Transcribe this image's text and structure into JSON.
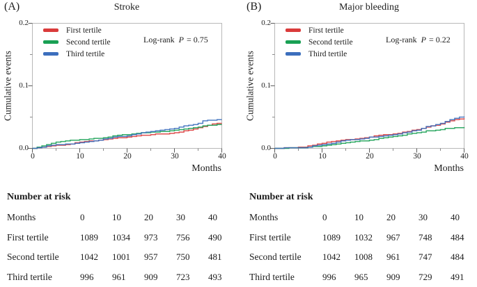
{
  "figure": {
    "panels": [
      {
        "label": "(A)",
        "title": "Stroke",
        "ylabel": "Cumulative events",
        "xlabel": "Months",
        "logrank": {
          "prefix": "Log-rank",
          "p": "P",
          "value": "= 0.75"
        },
        "legend": [
          "First tertile",
          "Second tertile",
          "Third tertile"
        ],
        "yticks": [
          "0.2",
          "0.1",
          "0.0"
        ],
        "xticks": [
          "0",
          "10",
          "20",
          "30",
          "40"
        ],
        "risk_table": {
          "title": "Number at risk",
          "row_header": "Months",
          "columns": [
            "0",
            "10",
            "20",
            "30",
            "40"
          ],
          "rows": [
            {
              "label": "First tertile",
              "values": [
                "1089",
                "1034",
                "973",
                "756",
                "490"
              ]
            },
            {
              "label": "Second tertile",
              "values": [
                "1042",
                "1001",
                "957",
                "750",
                "481"
              ]
            },
            {
              "label": "Third tertile",
              "values": [
                "996",
                "961",
                "909",
                "723",
                "493"
              ]
            }
          ]
        }
      },
      {
        "label": "(B)",
        "title": "Major bleeding",
        "ylabel": "Cumulative events",
        "xlabel": "Months",
        "logrank": {
          "prefix": "Log-rank",
          "p": "P",
          "value": "= 0.22"
        },
        "legend": [
          "First tertile",
          "Second tertile",
          "Third tertile"
        ],
        "yticks": [
          "0.2",
          "0.1",
          "0.0"
        ],
        "xticks": [
          "0",
          "10",
          "20",
          "30",
          "40"
        ],
        "risk_table": {
          "title": "Number at risk",
          "row_header": "Months",
          "columns": [
            "0",
            "10",
            "20",
            "30",
            "40"
          ],
          "rows": [
            {
              "label": "First tertile",
              "values": [
                "1089",
                "1032",
                "967",
                "748",
                "484"
              ]
            },
            {
              "label": "Second tertile",
              "values": [
                "1042",
                "1008",
                "961",
                "747",
                "484"
              ]
            },
            {
              "label": "Third tertile",
              "values": [
                "996",
                "965",
                "909",
                "729",
                "491"
              ]
            }
          ]
        }
      }
    ]
  },
  "chart_data": [
    {
      "type": "line",
      "step": true,
      "title": "Stroke",
      "xlabel": "Months",
      "ylabel": "Cumulative events",
      "annotation": "Log-rank P = 0.75",
      "legend_position": "upper-left",
      "xlim": [
        0,
        40
      ],
      "ylim": [
        0,
        0.2
      ],
      "xticks": [
        0,
        10,
        20,
        30,
        40
      ],
      "xminor": [
        5,
        15,
        25,
        35
      ],
      "yticks": [
        0,
        0.1,
        0.2
      ],
      "yminor": [
        0.05,
        0.15
      ],
      "x": [
        0,
        1,
        2,
        3,
        4,
        5,
        6,
        7,
        8,
        9,
        10,
        11,
        12,
        13,
        14,
        15,
        16,
        17,
        18,
        19,
        20,
        21,
        22,
        23,
        24,
        25,
        26,
        27,
        28,
        29,
        30,
        31,
        32,
        33,
        34,
        35,
        36,
        37,
        38,
        39,
        40
      ],
      "series": [
        {
          "name": "First tertile",
          "color": "#da3b3b",
          "values": [
            0,
            0.001,
            0.002,
            0.003,
            0.004,
            0.005,
            0.005,
            0.006,
            0.007,
            0.009,
            0.01,
            0.011,
            0.012,
            0.012,
            0.013,
            0.014,
            0.015,
            0.016,
            0.017,
            0.017,
            0.018,
            0.019,
            0.02,
            0.021,
            0.021,
            0.022,
            0.023,
            0.023,
            0.023,
            0.024,
            0.025,
            0.026,
            0.028,
            0.029,
            0.031,
            0.033,
            0.035,
            0.037,
            0.039,
            0.04,
            0.04
          ]
        },
        {
          "name": "Second tertile",
          "color": "#19a054",
          "values": [
            0,
            0.002,
            0.004,
            0.006,
            0.008,
            0.01,
            0.011,
            0.012,
            0.013,
            0.013,
            0.014,
            0.014,
            0.015,
            0.016,
            0.016,
            0.017,
            0.018,
            0.02,
            0.021,
            0.022,
            0.022,
            0.023,
            0.024,
            0.025,
            0.025,
            0.026,
            0.026,
            0.027,
            0.027,
            0.028,
            0.029,
            0.03,
            0.031,
            0.032,
            0.033,
            0.034,
            0.036,
            0.037,
            0.037,
            0.038,
            0.038
          ]
        },
        {
          "name": "Third tertile",
          "color": "#3c6fbd",
          "values": [
            0,
            0.001,
            0.002,
            0.004,
            0.005,
            0.006,
            0.006,
            0.007,
            0.007,
            0.008,
            0.009,
            0.01,
            0.011,
            0.012,
            0.013,
            0.015,
            0.016,
            0.018,
            0.019,
            0.019,
            0.02,
            0.022,
            0.023,
            0.025,
            0.026,
            0.027,
            0.028,
            0.029,
            0.03,
            0.031,
            0.032,
            0.034,
            0.036,
            0.037,
            0.038,
            0.04,
            0.044,
            0.045,
            0.045,
            0.046,
            0.046
          ]
        }
      ]
    },
    {
      "type": "line",
      "step": true,
      "title": "Major bleeding",
      "xlabel": "Months",
      "ylabel": "Cumulative events",
      "annotation": "Log-rank P = 0.22",
      "legend_position": "upper-left",
      "xlim": [
        0,
        40
      ],
      "ylim": [
        0,
        0.2
      ],
      "xticks": [
        0,
        10,
        20,
        30,
        40
      ],
      "xminor": [
        5,
        15,
        25,
        35
      ],
      "yticks": [
        0,
        0.1,
        0.2
      ],
      "yminor": [
        0.05,
        0.15
      ],
      "x": [
        0,
        1,
        2,
        3,
        4,
        5,
        6,
        7,
        8,
        9,
        10,
        11,
        12,
        13,
        14,
        15,
        16,
        17,
        18,
        19,
        20,
        21,
        22,
        23,
        24,
        25,
        26,
        27,
        28,
        29,
        30,
        31,
        32,
        33,
        34,
        35,
        36,
        37,
        38,
        39,
        40
      ],
      "series": [
        {
          "name": "First tertile",
          "color": "#da3b3b",
          "values": [
            0,
            0,
            0.001,
            0.001,
            0.001,
            0.002,
            0.002,
            0.004,
            0.005,
            0.007,
            0.008,
            0.01,
            0.011,
            0.012,
            0.013,
            0.014,
            0.014,
            0.015,
            0.016,
            0.017,
            0.018,
            0.02,
            0.021,
            0.022,
            0.022,
            0.023,
            0.024,
            0.026,
            0.027,
            0.029,
            0.03,
            0.032,
            0.034,
            0.036,
            0.037,
            0.039,
            0.042,
            0.044,
            0.046,
            0.047,
            0.048
          ]
        },
        {
          "name": "Second tertile",
          "color": "#19a054",
          "values": [
            0,
            0,
            0,
            0.001,
            0.001,
            0.001,
            0.001,
            0.002,
            0.003,
            0.003,
            0.004,
            0.005,
            0.006,
            0.007,
            0.008,
            0.009,
            0.01,
            0.011,
            0.012,
            0.012,
            0.013,
            0.014,
            0.016,
            0.017,
            0.018,
            0.019,
            0.02,
            0.021,
            0.023,
            0.024,
            0.025,
            0.026,
            0.028,
            0.028,
            0.029,
            0.03,
            0.032,
            0.032,
            0.033,
            0.033,
            0.034
          ]
        },
        {
          "name": "Third tertile",
          "color": "#3c6fbd",
          "values": [
            0,
            0,
            0.001,
            0.001,
            0.001,
            0.001,
            0.001,
            0.002,
            0.004,
            0.005,
            0.006,
            0.007,
            0.008,
            0.01,
            0.012,
            0.013,
            0.014,
            0.014,
            0.015,
            0.016,
            0.018,
            0.018,
            0.019,
            0.02,
            0.021,
            0.022,
            0.023,
            0.025,
            0.026,
            0.028,
            0.029,
            0.032,
            0.035,
            0.036,
            0.038,
            0.04,
            0.043,
            0.046,
            0.048,
            0.05,
            0.051
          ]
        }
      ]
    }
  ]
}
